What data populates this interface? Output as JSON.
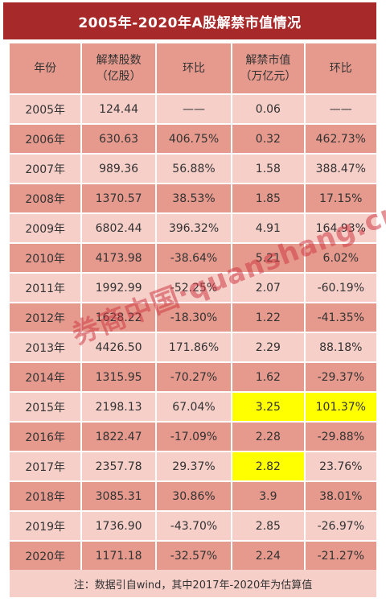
{
  "title": "2005年-2020年A股解禁市值情况",
  "headers": {
    "year": "年份",
    "shares_l1": "解禁股数",
    "shares_l2": "（亿股）",
    "shares_chg": "环比",
    "value_l1": "解禁市值",
    "value_l2": "（万亿元）",
    "value_chg": "环比"
  },
  "rows": [
    {
      "year": "2005年",
      "shares": "124.44",
      "shares_chg": "——",
      "value": "0.06",
      "value_chg": "——"
    },
    {
      "year": "2006年",
      "shares": "630.63",
      "shares_chg": "406.75%",
      "value": "0.32",
      "value_chg": "462.73%"
    },
    {
      "year": "2007年",
      "shares": "989.36",
      "shares_chg": "56.88%",
      "value": "1.58",
      "value_chg": "388.47%"
    },
    {
      "year": "2008年",
      "shares": "1370.57",
      "shares_chg": "38.53%",
      "value": "1.85",
      "value_chg": "17.15%"
    },
    {
      "year": "2009年",
      "shares": "6802.44",
      "shares_chg": "396.32%",
      "value": "4.91",
      "value_chg": "164.93%"
    },
    {
      "year": "2010年",
      "shares": "4173.98",
      "shares_chg": "-38.64%",
      "value": "5.21",
      "value_chg": "6.02%"
    },
    {
      "year": "2011年",
      "shares": "1992.99",
      "shares_chg": "-52.25%",
      "value": "2.07",
      "value_chg": "-60.19%"
    },
    {
      "year": "2012年",
      "shares": "1628.22",
      "shares_chg": "-18.30%",
      "value": "1.22",
      "value_chg": "-41.35%"
    },
    {
      "year": "2013年",
      "shares": "4426.50",
      "shares_chg": "171.86%",
      "value": "2.29",
      "value_chg": "88.18%"
    },
    {
      "year": "2014年",
      "shares": "1315.95",
      "shares_chg": "-70.27%",
      "value": "1.62",
      "value_chg": "-29.37%"
    },
    {
      "year": "2015年",
      "shares": "2198.13",
      "shares_chg": "67.04%",
      "value": "3.25",
      "value_chg": "101.37%"
    },
    {
      "year": "2016年",
      "shares": "1822.47",
      "shares_chg": "-17.09%",
      "value": "2.28",
      "value_chg": "-29.88%"
    },
    {
      "year": "2017年",
      "shares": "2357.78",
      "shares_chg": "29.37%",
      "value": "2.82",
      "value_chg": "23.76%"
    },
    {
      "year": "2018年",
      "shares": "3085.31",
      "shares_chg": "30.86%",
      "value": "3.9",
      "value_chg": "38.01%"
    },
    {
      "year": "2019年",
      "shares": "1736.90",
      "shares_chg": "-43.70%",
      "value": "2.85",
      "value_chg": "-26.97%"
    },
    {
      "year": "2020年",
      "shares": "1171.18",
      "shares_chg": "-32.57%",
      "value": "2.24",
      "value_chg": "-21.27%"
    }
  ],
  "note": "注：数据引自wind，其中2017年-2020年为估算值",
  "watermark": "券商中国·quanshang.cn",
  "colors": {
    "title_bg": "#a8292a",
    "row_dark": "#e69a8d",
    "row_light": "#f6cfc9",
    "highlight": "#ffff00"
  }
}
